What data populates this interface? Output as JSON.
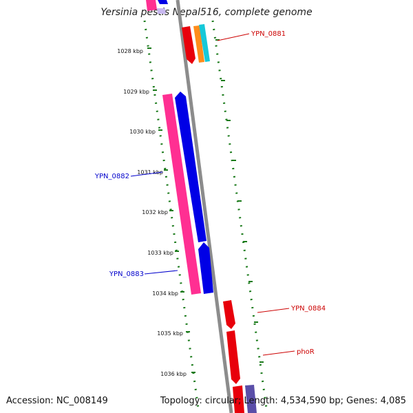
{
  "title": "Yersinia pestis Nepal516, complete genome",
  "footer": {
    "accession": "Accession: NC_008149",
    "summary": "Topology: circular; Length: 4,534,590 bp; Genes: 4,085"
  },
  "colors": {
    "backbone": "#8c8c8c",
    "tick": "#1a7a1a",
    "forward_gene": "#e8000b",
    "reverse_gene": "#0000e6",
    "pink_gene": "#ff2f92",
    "label_forward": "#cc0000",
    "label_reverse": "#0000cc",
    "orange_gene": "#ff8c1a",
    "cyan_gene": "#16c8d8",
    "purple_gene": "#5a4ea8"
  },
  "kbp_labels": [
    "1028 kbp",
    "1029 kbp",
    "1030 kbp",
    "1031 kbp",
    "1032 kbp",
    "1033 kbp",
    "1034 kbp",
    "1035 kbp",
    "1036 kbp"
  ],
  "gene_labels": [
    {
      "id": "YPN_0881",
      "text": "YPN_0881",
      "strand": "forward"
    },
    {
      "id": "YPN_0882",
      "text": "YPN_0882",
      "strand": "reverse"
    },
    {
      "id": "YPN_0883",
      "text": "YPN_0883",
      "strand": "reverse"
    },
    {
      "id": "YPN_0884",
      "text": "YPN_0884",
      "strand": "forward"
    },
    {
      "id": "phoR",
      "text": "phoR",
      "strand": "forward"
    }
  ]
}
